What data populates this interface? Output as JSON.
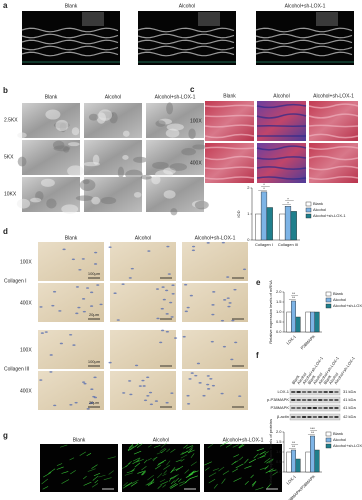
{
  "panels": {
    "a": {
      "label": "a",
      "headers": [
        "Blank",
        "Alcohol",
        "Alcohol+sh-LOX-1"
      ]
    },
    "b": {
      "label": "b",
      "headers": [
        "Blank",
        "Alcohol",
        "Alcohol+sh-LOX-1"
      ],
      "rows": [
        "2.5KX",
        "5KX",
        "10KX"
      ]
    },
    "c": {
      "label": "c",
      "headers": [
        "Blank",
        "Alcohol",
        "Alcohol+sh-LOX-1"
      ],
      "rows": [
        "100X",
        "400X"
      ]
    },
    "d": {
      "label": "d",
      "headers": [
        "Blank",
        "Alcohol",
        "Alcohol+sh-LOX-1"
      ],
      "groups": [
        {
          "name": "Collagen I",
          "rows": [
            {
              "label": "100X",
              "scale": "100μm"
            },
            {
              "label": "400X",
              "scale": "20μm"
            }
          ]
        },
        {
          "name": "Collagen III",
          "rows": [
            {
              "label": "100X",
              "scale": "100μm"
            },
            {
              "label": "400X",
              "scale": "20μm"
            }
          ]
        }
      ]
    },
    "e": {
      "label": "e"
    },
    "f": {
      "label": "f",
      "lanes": [
        "Blank",
        "Alcohol",
        "Alcohol+sh-LOX-1",
        "Blank",
        "Alcohol",
        "Alcohol+sh-LOX-1",
        "Blank",
        "Alcohol",
        "Alcohol+sh-LOX-1"
      ],
      "blots": [
        {
          "protein": "LOX-1",
          "size": "31 kDa"
        },
        {
          "protein": "p-P38MAPK",
          "size": "41 kDa"
        },
        {
          "protein": "P38MAPK",
          "size": "41 kDa"
        },
        {
          "protein": "β-actin",
          "size": "42 kDa"
        }
      ]
    },
    "g": {
      "label": "g",
      "headers": [
        "Blank",
        "Alcohol",
        "Alcohol+sh-LOX-1"
      ]
    }
  },
  "chart_data": [
    {
      "type": "bar",
      "y_label": "IOD",
      "categories": [
        "Collagen I",
        "Collagen III"
      ],
      "series": [
        {
          "name": "Blank",
          "color": "#ffffff",
          "values": [
            1.0,
            1.0
          ]
        },
        {
          "name": "Alcohol",
          "color": "#7db4e6",
          "values": [
            1.85,
            1.3
          ]
        },
        {
          "name": "Alcohol+sh-LOX-1",
          "color": "#1f7f8c",
          "values": [
            1.25,
            1.1
          ]
        }
      ],
      "significance": [
        [
          "*",
          "*"
        ],
        [
          "*",
          "*"
        ]
      ],
      "ylim": [
        0,
        2
      ],
      "yticks": [
        0,
        1,
        2
      ]
    },
    {
      "type": "bar",
      "y_label": "Relative expression levels of mRNA",
      "categories": [
        "LOX-1",
        "P38MAPK"
      ],
      "series": [
        {
          "name": "Blank",
          "color": "#ffffff",
          "values": [
            1.0,
            1.0
          ]
        },
        {
          "name": "Alcohol",
          "color": "#7db4e6",
          "values": [
            1.55,
            1.0
          ]
        },
        {
          "name": "Alcohol+sh-LOX-1",
          "color": "#1f7f8c",
          "values": [
            0.75,
            1.0
          ]
        }
      ],
      "significance": [
        [
          "**",
          "**"
        ],
        []
      ],
      "ylim": [
        0,
        2
      ],
      "yticks": [
        {
          "value": 0,
          "label": "0.0"
        },
        {
          "value": 0.5,
          "label": "0.5"
        },
        {
          "value": 1,
          "label": "1.0"
        },
        {
          "value": 1.5,
          "label": "1.5"
        },
        {
          "value": 2,
          "label": "2.0"
        }
      ]
    },
    {
      "type": "bar",
      "y_label": "Relative expression levels of proteins",
      "categories": [
        "LOX-1",
        "p-P38MAPK/P38MAPK"
      ],
      "series": [
        {
          "name": "Blank",
          "color": "#ffffff",
          "values": [
            1.0,
            1.0
          ]
        },
        {
          "name": "Alcohol",
          "color": "#7db4e6",
          "values": [
            1.1,
            1.8
          ]
        },
        {
          "name": "Alcohol+sh-LOX-1",
          "color": "#1f7f8c",
          "values": [
            0.65,
            1.1
          ]
        }
      ],
      "significance": [
        [
          "**",
          "**"
        ],
        [
          "**",
          "***"
        ]
      ],
      "ylim": [
        0,
        2
      ],
      "yticks": [
        {
          "value": 0,
          "label": "0.0"
        },
        {
          "value": 0.5,
          "label": "0.5"
        },
        {
          "value": 1,
          "label": "1.0"
        },
        {
          "value": 1.5,
          "label": "1.5"
        },
        {
          "value": 2,
          "label": "2.0"
        }
      ]
    }
  ]
}
